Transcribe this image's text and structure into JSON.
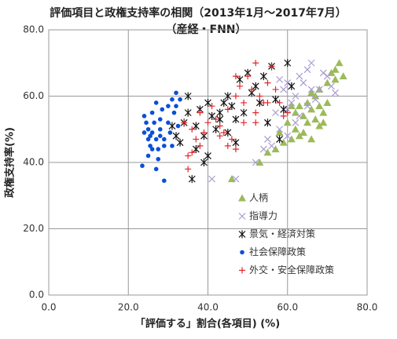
{
  "chart_data": {
    "type": "scatter",
    "title": "評価項目と政権支持率の相関（2013年1月～2017年7月）",
    "subtitle": "（産経・FNN）",
    "x_label": "「評価する」割合(各項目) (%)",
    "y_label": "政権支持率(%)",
    "xlim": [
      0,
      80
    ],
    "ylim": [
      0,
      80
    ],
    "xticks": [
      {
        "value": 0,
        "label": "0.0"
      },
      {
        "value": 20,
        "label": "20.0"
      },
      {
        "value": 40,
        "label": "40.0"
      },
      {
        "value": 60,
        "label": "60.0"
      },
      {
        "value": 80,
        "label": "80.0"
      }
    ],
    "yticks": [
      {
        "value": 0,
        "label": "0.0"
      },
      {
        "value": 20,
        "label": "20.0"
      },
      {
        "value": 40,
        "label": "40.0"
      },
      {
        "value": 60,
        "label": "60.0"
      },
      {
        "value": 80,
        "label": "80.0"
      }
    ],
    "grid": true,
    "legend": "lower right",
    "series": [
      {
        "name": "人柄",
        "color": "#9bbb59",
        "marker": "triangle",
        "x": [
          46,
          53,
          55,
          57,
          58,
          59,
          60,
          61,
          62,
          62,
          63,
          63,
          64,
          64,
          65,
          65,
          66,
          66,
          67,
          67,
          68,
          68,
          69,
          70,
          70,
          71,
          72,
          72,
          73,
          74,
          68,
          66,
          61,
          69
        ],
        "values": [
          35,
          40,
          43,
          44,
          49,
          46,
          52,
          47,
          55,
          50,
          57,
          48,
          54,
          49,
          58,
          52,
          56,
          47,
          60,
          53,
          57,
          51,
          55,
          58,
          64,
          67,
          68,
          65,
          70,
          66,
          62,
          61,
          57,
          52
        ]
      },
      {
        "name": "指導力",
        "color": "#a99bd0",
        "marker": "x",
        "x": [
          41,
          47,
          52,
          54,
          55,
          55,
          56,
          57,
          58,
          59,
          60,
          60,
          61,
          62,
          62,
          63,
          64,
          65,
          65,
          66,
          67,
          68,
          69,
          70,
          71,
          72,
          63,
          66,
          58,
          60
        ],
        "values": [
          35,
          35,
          40,
          44,
          47,
          52,
          45,
          55,
          50,
          62,
          56,
          48,
          58,
          60,
          52,
          66,
          64,
          68,
          57,
          70,
          59,
          62,
          67,
          66,
          63,
          61,
          54,
          62,
          65,
          64
        ]
      },
      {
        "name": "景気・経済対策",
        "color": "#111111",
        "marker": "asterisk",
        "x": [
          31,
          32,
          33,
          34,
          35,
          35,
          36,
          37,
          37,
          38,
          39,
          40,
          40,
          41,
          42,
          43,
          44,
          45,
          45,
          46,
          47,
          48,
          49,
          50,
          51,
          52,
          53,
          54,
          55,
          56,
          57,
          58,
          59,
          60,
          61,
          39,
          43,
          47
        ],
        "values": [
          51,
          48,
          46,
          52,
          55,
          60,
          35,
          44,
          51,
          56,
          48,
          58,
          42,
          54,
          50,
          53,
          58,
          49,
          60,
          57,
          53,
          65,
          55,
          67,
          61,
          63,
          58,
          66,
          52,
          69,
          59,
          47,
          56,
          70,
          63,
          40,
          55,
          46
        ]
      },
      {
        "name": "社会保障政策",
        "color": "#0a4fd8",
        "marker": "dot",
        "x": [
          23.5,
          24,
          24.5,
          25,
          25,
          25.5,
          25,
          26,
          26,
          26.5,
          27,
          27,
          27.5,
          27.5,
          28,
          28,
          28.5,
          29,
          29,
          29,
          30,
          30,
          30.5,
          31,
          31,
          31.5,
          32,
          32,
          32.5,
          26,
          25.5,
          24,
          27,
          28,
          33
        ],
        "values": [
          39,
          54,
          52,
          50,
          47,
          45,
          42,
          55,
          49,
          52,
          58,
          47,
          44,
          41,
          53,
          50,
          56,
          34.5,
          47,
          45,
          57,
          52,
          49,
          59,
          45,
          55,
          61,
          57,
          51,
          44,
          48,
          49,
          38,
          48,
          59
        ]
      },
      {
        "name": "外交・安全保障政策",
        "color": "#e0262b",
        "marker": "plus",
        "x": [
          34,
          35,
          36,
          36,
          37,
          38,
          39,
          40,
          41,
          42,
          43,
          44,
          45,
          46,
          47,
          47,
          48,
          49,
          50,
          51,
          52,
          52,
          53,
          54,
          55,
          56,
          57,
          58,
          59,
          45,
          47,
          49,
          43,
          35,
          38,
          52,
          55,
          60
        ],
        "values": [
          52,
          38,
          43,
          50,
          47,
          55,
          49,
          52,
          57,
          53,
          51,
          49,
          56,
          47,
          66,
          60,
          63,
          58,
          66,
          62,
          70,
          55,
          60,
          58,
          64,
          69,
          62,
          58,
          54,
          45,
          44,
          52,
          48,
          42,
          45,
          52,
          58,
          55
        ]
      }
    ]
  }
}
